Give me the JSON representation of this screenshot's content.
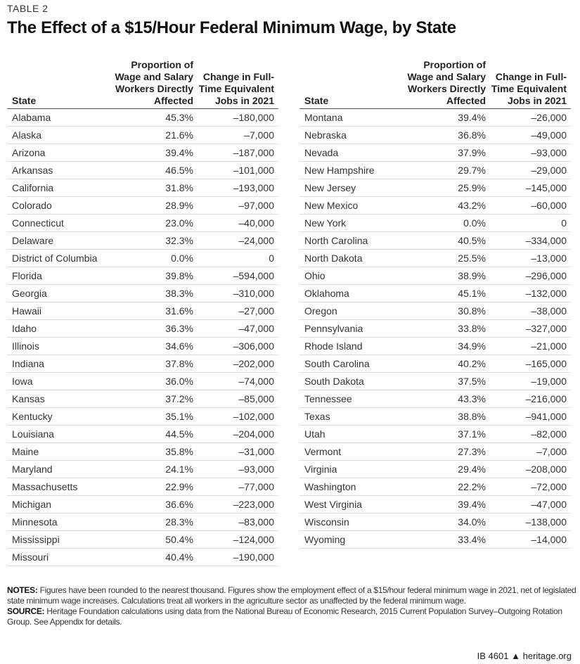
{
  "table_label": "TABLE 2",
  "title": "The Effect of a $15/Hour Federal Minimum Wage, by State",
  "columns": {
    "state": "State",
    "proportion": "Proportion of Wage and Salary Workers Directly Affected",
    "change": "Change in Full-Time Equivalent Jobs in 2021"
  },
  "left_rows": [
    [
      "Alabama",
      "45.3%",
      "–180,000"
    ],
    [
      "Alaska",
      "21.6%",
      "–7,000"
    ],
    [
      "Arizona",
      "39.4%",
      "–187,000"
    ],
    [
      "Arkansas",
      "46.5%",
      "–101,000"
    ],
    [
      "California",
      "31.8%",
      "–193,000"
    ],
    [
      "Colorado",
      "28.9%",
      "–97,000"
    ],
    [
      "Connecticut",
      "23.0%",
      "–40,000"
    ],
    [
      "Delaware",
      "32.3%",
      "–24,000"
    ],
    [
      "District of Columbia",
      "0.0%",
      "0"
    ],
    [
      "Florida",
      "39.8%",
      "–594,000"
    ],
    [
      "Georgia",
      "38.3%",
      "–310,000"
    ],
    [
      "Hawaii",
      "31.6%",
      "–27,000"
    ],
    [
      "Idaho",
      "36.3%",
      "–47,000"
    ],
    [
      "Illinois",
      "34.6%",
      "–306,000"
    ],
    [
      "Indiana",
      "37.8%",
      "–202,000"
    ],
    [
      "Iowa",
      "36.0%",
      "–74,000"
    ],
    [
      "Kansas",
      "37.2%",
      "–85,000"
    ],
    [
      "Kentucky",
      "35.1%",
      "–102,000"
    ],
    [
      "Louisiana",
      "44.5%",
      "–204,000"
    ],
    [
      "Maine",
      "35.8%",
      "–31,000"
    ],
    [
      "Maryland",
      "24.1%",
      "–93,000"
    ],
    [
      "Massachusetts",
      "22.9%",
      "–77,000"
    ],
    [
      "Michigan",
      "36.6%",
      "–223,000"
    ],
    [
      "Minnesota",
      "28.3%",
      "–83,000"
    ],
    [
      "Mississippi",
      "50.4%",
      "–124,000"
    ],
    [
      "Missouri",
      "40.4%",
      "–190,000"
    ]
  ],
  "right_rows": [
    [
      "Montana",
      "39.4%",
      "–26,000"
    ],
    [
      "Nebraska",
      "36.8%",
      "–49,000"
    ],
    [
      "Nevada",
      "37.9%",
      "–93,000"
    ],
    [
      "New Hampshire",
      "29.7%",
      "–29,000"
    ],
    [
      "New Jersey",
      "25.9%",
      "–145,000"
    ],
    [
      "New Mexico",
      "43.2%",
      "–60,000"
    ],
    [
      "New York",
      "0.0%",
      "0"
    ],
    [
      "North Carolina",
      "40.5%",
      "–334,000"
    ],
    [
      "North Dakota",
      "25.5%",
      "–13,000"
    ],
    [
      "Ohio",
      "38.9%",
      "–296,000"
    ],
    [
      "Oklahoma",
      "45.1%",
      "–132,000"
    ],
    [
      "Oregon",
      "30.8%",
      "–38,000"
    ],
    [
      "Pennsylvania",
      "33.8%",
      "–327,000"
    ],
    [
      "Rhode Island",
      "34.9%",
      "–21,000"
    ],
    [
      "South Carolina",
      "40.2%",
      "–165,000"
    ],
    [
      "South Dakota",
      "37.5%",
      "–19,000"
    ],
    [
      "Tennessee",
      "43.3%",
      "–216,000"
    ],
    [
      "Texas",
      "38.8%",
      "–941,000"
    ],
    [
      "Utah",
      "37.1%",
      "–82,000"
    ],
    [
      "Vermont",
      "27.3%",
      "–7,000"
    ],
    [
      "Virginia",
      "29.4%",
      "–208,000"
    ],
    [
      "Washington",
      "22.2%",
      "–72,000"
    ],
    [
      "West Virginia",
      "39.4%",
      "–47,000"
    ],
    [
      "Wisconsin",
      "34.0%",
      "–138,000"
    ],
    [
      "Wyoming",
      "33.4%",
      "–14,000"
    ]
  ],
  "notes": {
    "notes_label": "NOTES:",
    "notes_text": " Figures have been rounded to the nearest thousand. Figures show the employment effect of a $15/hour federal minimum wage in 2021, net of legislated state minimum wage increases. Calculations treat all workers in the agriculture sector as unaffected by the federal minimum wage.",
    "source_label": "SOURCE:",
    "source_text": " Heritage Foundation calculations using data from the National Bureau of Economic Research, 2015 Current Population Survey–Outgoing Rotation Group. See Appendix for details."
  },
  "footer": {
    "id": "IB 4601",
    "icon": "bell-icon",
    "site": "heritage.org"
  }
}
